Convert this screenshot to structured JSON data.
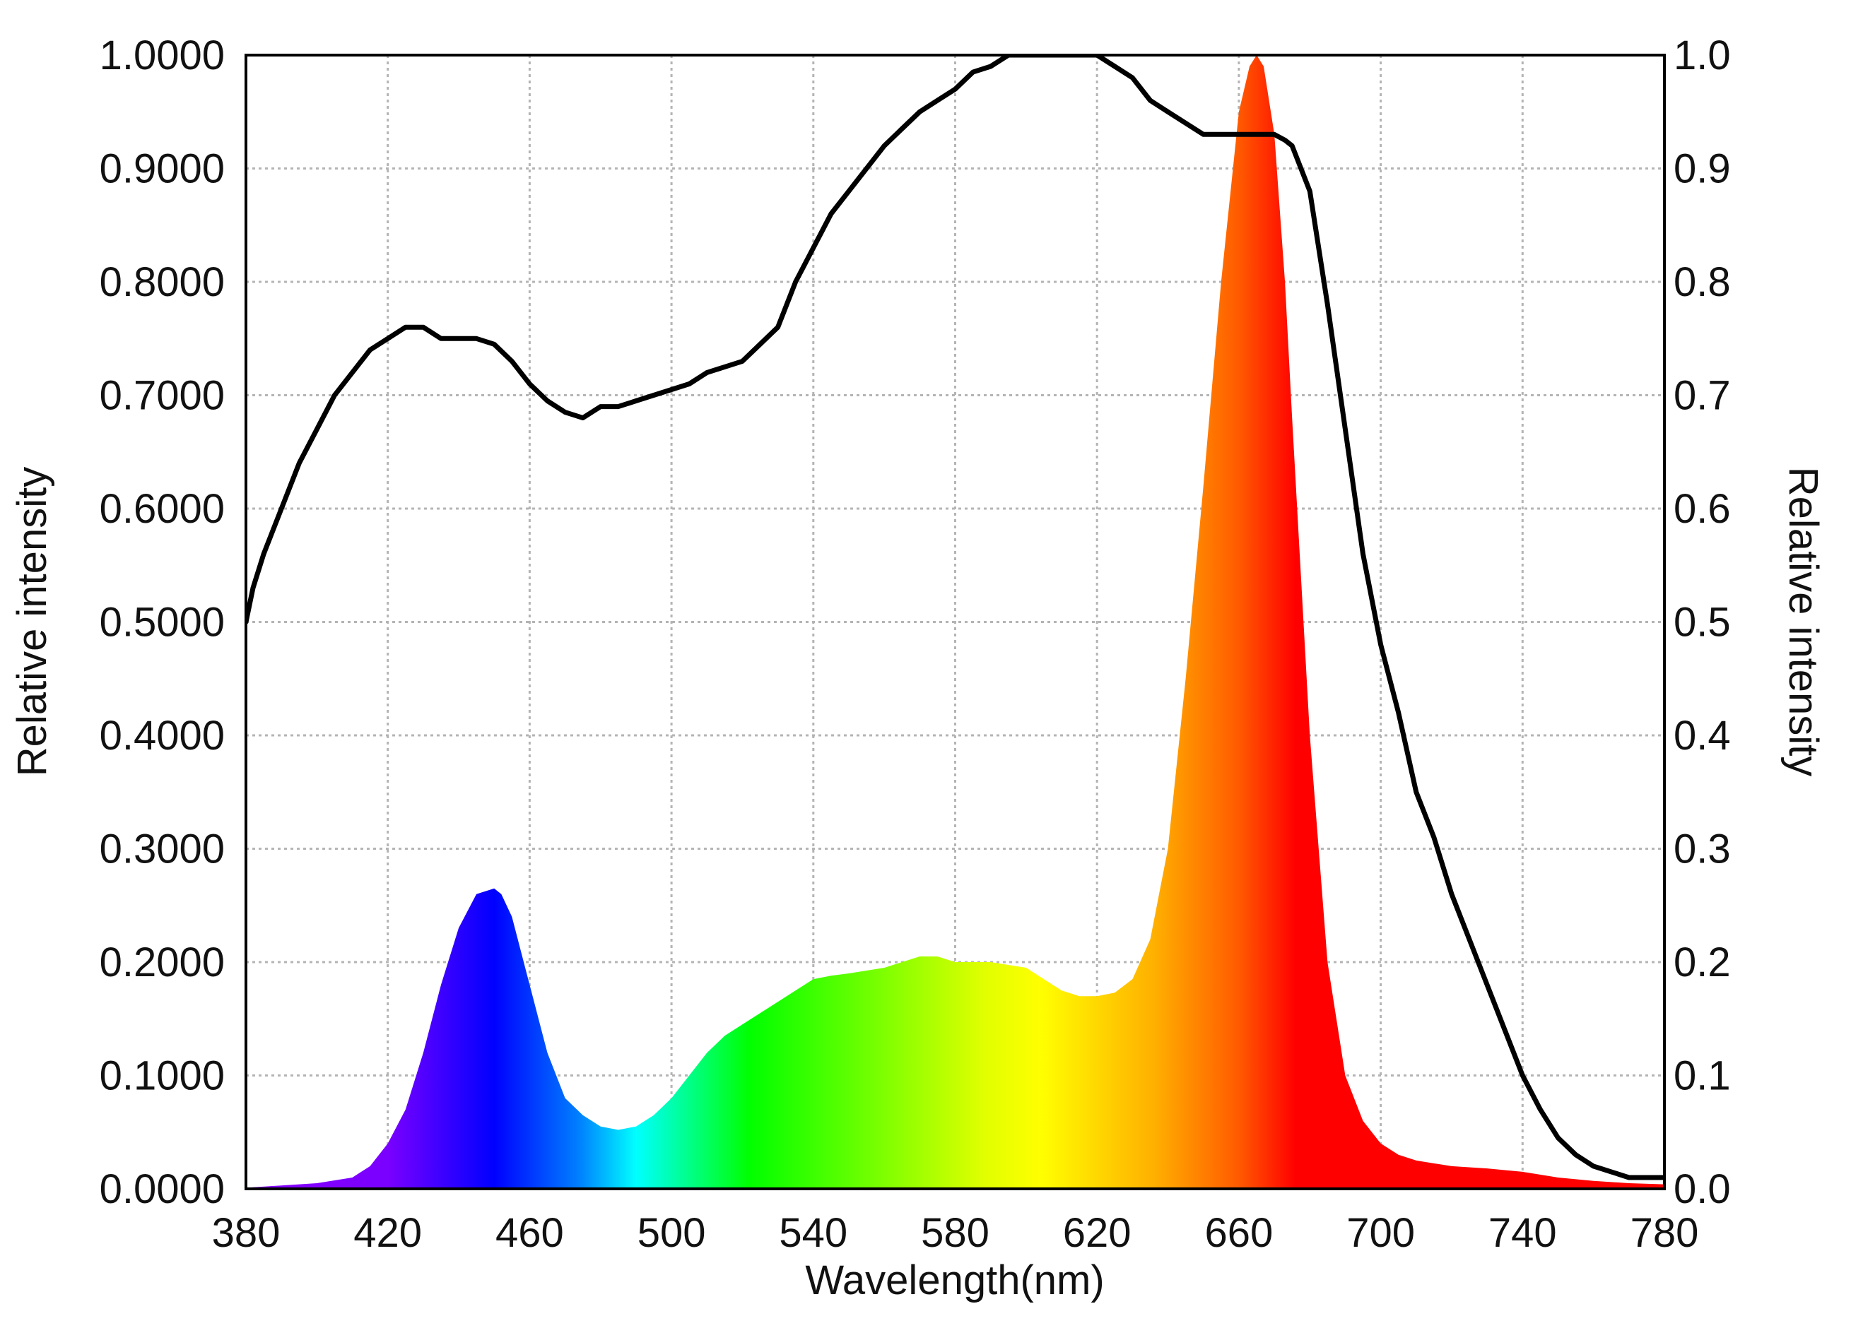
{
  "chart_data": {
    "type": "area",
    "title": "",
    "xlabel": "Wavelength(nm)",
    "ylabel_left": "Relative intensity",
    "ylabel_right": "Relative intensity",
    "xlim": [
      380,
      780
    ],
    "ylim": [
      0,
      1
    ],
    "x_ticks": [
      380,
      420,
      460,
      500,
      540,
      580,
      620,
      660,
      700,
      740,
      780
    ],
    "x_tick_labels": [
      "380",
      "420",
      "460",
      "500",
      "540",
      "580",
      "620",
      "660",
      "700",
      "740",
      "780"
    ],
    "y_ticks": [
      0,
      0.1,
      0.2,
      0.3,
      0.4,
      0.5,
      0.6,
      0.7,
      0.8,
      0.9,
      1.0
    ],
    "y_left_tick_labels": [
      "0.0000",
      "0.1000",
      "0.2000",
      "0.3000",
      "0.4000",
      "0.5000",
      "0.6000",
      "0.7000",
      "0.8000",
      "0.9000",
      "1.0000"
    ],
    "y_right_tick_labels": [
      "0.0",
      "0.1",
      "0.2",
      "0.3",
      "0.4",
      "0.5",
      "0.6",
      "0.7",
      "0.8",
      "0.9",
      "1.0"
    ],
    "grid": true,
    "series": [
      {
        "type": "area",
        "fill": "spectrum-gradient",
        "x": [
          380,
          390,
          400,
          410,
          415,
          420,
          425,
          430,
          435,
          440,
          445,
          450,
          452,
          455,
          460,
          465,
          470,
          475,
          480,
          485,
          490,
          495,
          500,
          505,
          510,
          515,
          520,
          530,
          540,
          545,
          550,
          560,
          570,
          575,
          580,
          590,
          600,
          605,
          610,
          615,
          620,
          625,
          630,
          635,
          640,
          645,
          650,
          655,
          660,
          663,
          665,
          667,
          670,
          673,
          675,
          680,
          685,
          690,
          695,
          700,
          705,
          710,
          720,
          730,
          740,
          750,
          760,
          770,
          780
        ],
        "y": [
          0.001,
          0.003,
          0.005,
          0.01,
          0.02,
          0.04,
          0.07,
          0.12,
          0.18,
          0.23,
          0.26,
          0.265,
          0.26,
          0.24,
          0.18,
          0.12,
          0.08,
          0.065,
          0.055,
          0.052,
          0.055,
          0.065,
          0.08,
          0.1,
          0.12,
          0.135,
          0.145,
          0.165,
          0.185,
          0.188,
          0.19,
          0.195,
          0.205,
          0.205,
          0.2,
          0.2,
          0.195,
          0.185,
          0.175,
          0.17,
          0.17,
          0.173,
          0.185,
          0.22,
          0.3,
          0.45,
          0.62,
          0.8,
          0.95,
          0.99,
          1.0,
          0.99,
          0.93,
          0.8,
          0.68,
          0.4,
          0.2,
          0.1,
          0.06,
          0.04,
          0.03,
          0.025,
          0.02,
          0.018,
          0.015,
          0.01,
          0.007,
          0.005,
          0.004
        ]
      },
      {
        "type": "line",
        "color": "#000000",
        "x": [
          380,
          382,
          385,
          390,
          395,
          400,
          405,
          410,
          415,
          420,
          425,
          430,
          435,
          440,
          445,
          450,
          455,
          460,
          465,
          470,
          475,
          480,
          485,
          490,
          495,
          500,
          505,
          510,
          515,
          520,
          525,
          530,
          535,
          540,
          545,
          550,
          555,
          560,
          565,
          570,
          575,
          580,
          585,
          590,
          595,
          600,
          605,
          610,
          615,
          620,
          625,
          630,
          635,
          640,
          645,
          650,
          655,
          660,
          665,
          670,
          673,
          675,
          680,
          685,
          690,
          695,
          700,
          705,
          710,
          715,
          720,
          725,
          730,
          735,
          740,
          745,
          750,
          755,
          760,
          765,
          770,
          775,
          780
        ],
        "y": [
          0.5,
          0.53,
          0.56,
          0.6,
          0.64,
          0.67,
          0.7,
          0.72,
          0.74,
          0.75,
          0.76,
          0.76,
          0.75,
          0.75,
          0.75,
          0.745,
          0.73,
          0.71,
          0.695,
          0.685,
          0.68,
          0.69,
          0.69,
          0.695,
          0.7,
          0.705,
          0.71,
          0.72,
          0.725,
          0.73,
          0.745,
          0.76,
          0.8,
          0.83,
          0.86,
          0.88,
          0.9,
          0.92,
          0.935,
          0.95,
          0.96,
          0.97,
          0.985,
          0.99,
          1.0,
          1.0,
          1.0,
          1.0,
          1.0,
          1.0,
          0.99,
          0.98,
          0.96,
          0.95,
          0.94,
          0.93,
          0.93,
          0.93,
          0.93,
          0.93,
          0.925,
          0.92,
          0.88,
          0.78,
          0.67,
          0.56,
          0.48,
          0.42,
          0.35,
          0.31,
          0.26,
          0.22,
          0.18,
          0.14,
          0.1,
          0.07,
          0.045,
          0.03,
          0.02,
          0.015,
          0.01,
          0.01,
          0.01
        ]
      }
    ]
  }
}
